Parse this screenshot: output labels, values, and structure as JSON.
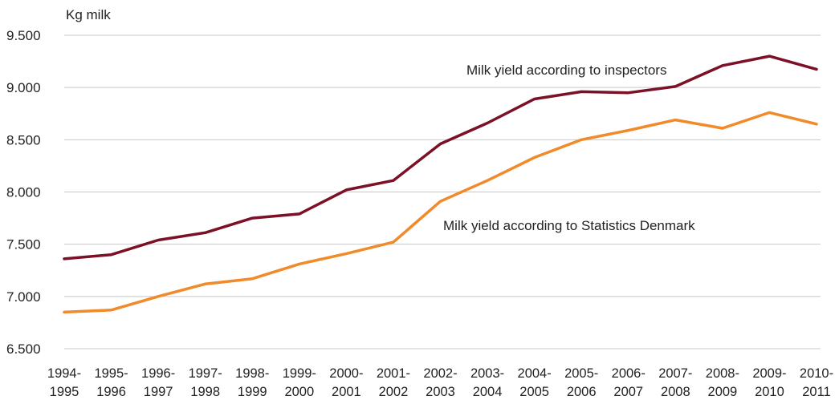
{
  "chart_data": {
    "type": "line",
    "title": "",
    "ylabel": "Kg milk",
    "xlabel": "",
    "ylim": [
      6500,
      9500
    ],
    "yticks": [
      "6.500",
      "7.000",
      "7.500",
      "8.000",
      "8.500",
      "9.000",
      "9.500"
    ],
    "ytick_values": [
      6500,
      7000,
      7500,
      8000,
      8500,
      9000,
      9500
    ],
    "grid": true,
    "categories": [
      [
        "1994-",
        "1995"
      ],
      [
        "1995-",
        "1996"
      ],
      [
        "1996-",
        "1997"
      ],
      [
        "1997-",
        "1998"
      ],
      [
        "1998-",
        "1999"
      ],
      [
        "1999-",
        "2000"
      ],
      [
        "2000-",
        "2001"
      ],
      [
        "2001-",
        "2002"
      ],
      [
        "2002-",
        "2003"
      ],
      [
        "2003-",
        "2004"
      ],
      [
        "2004-",
        "2005"
      ],
      [
        "2005-",
        "2006"
      ],
      [
        "2006-",
        "2007"
      ],
      [
        "2007-",
        "2008"
      ],
      [
        "2008-",
        "2009"
      ],
      [
        "2009-",
        "2010"
      ],
      [
        "2010-",
        "2011"
      ]
    ],
    "series": [
      {
        "name": "Milk yield according to inspectors",
        "color": "#7b1026",
        "values": [
          7360,
          7400,
          7540,
          7610,
          7750,
          7790,
          8020,
          8110,
          8460,
          8660,
          8890,
          8960,
          8950,
          9010,
          9210,
          9300,
          9175
        ]
      },
      {
        "name": "Milk yield according to Statistics Denmark",
        "color": "#f08a2a",
        "values": [
          6850,
          6870,
          7000,
          7120,
          7170,
          7310,
          7410,
          7520,
          7910,
          8110,
          8330,
          8500,
          8590,
          8690,
          8610,
          8760,
          8650
        ]
      }
    ]
  }
}
